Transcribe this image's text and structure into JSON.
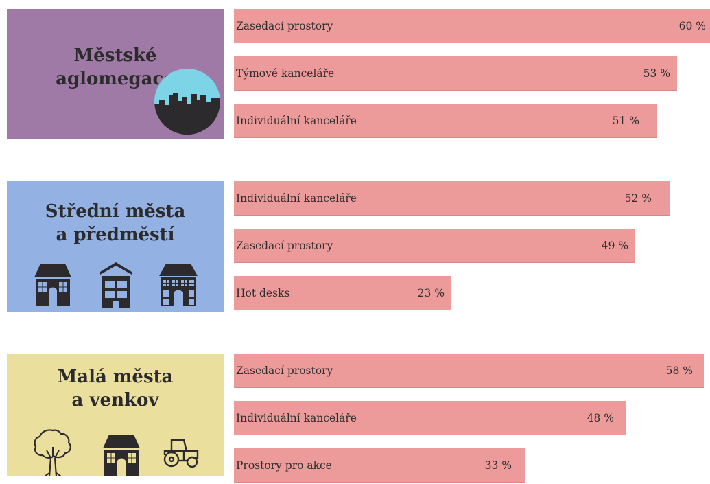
{
  "colors": {
    "bar": "#ec9a9a",
    "panel_metro": "#a07aa6",
    "panel_mid": "#94b1e3",
    "panel_small": "#eadf9c",
    "icon_dark": "#2d2a2e",
    "sky": "#7dd4e6"
  },
  "icons": {
    "metro": [
      "city-skyline-icon"
    ],
    "mid": [
      "house-icon",
      "apartment-block-icon",
      "townhouse-icon"
    ],
    "small": [
      "tree-icon",
      "house-icon",
      "tractor-icon"
    ]
  },
  "chart_data": {
    "type": "bar",
    "orientation": "horizontal",
    "unit": "%",
    "groups": [
      {
        "key": "metro",
        "title_lines": [
          "Městské",
          "aglomegace"
        ],
        "categories": [
          "Zasedací prostory",
          "Týmové kanceláře",
          "Individuální kanceláře"
        ],
        "values": [
          60,
          53,
          51
        ],
        "value_labels": [
          "60 %",
          "53 %",
          "51 %"
        ]
      },
      {
        "key": "mid",
        "title_lines": [
          "Střední města",
          "a předměstí"
        ],
        "categories": [
          "Individuální kanceláře",
          "Zasedací prostory",
          "Hot desks"
        ],
        "values": [
          52,
          49,
          23
        ],
        "value_labels": [
          "52 %",
          "49 %",
          "23 %"
        ]
      },
      {
        "key": "small",
        "title_lines": [
          "Malá města",
          "a venkov"
        ],
        "categories": [
          "Zasedací prostory",
          "Individuální kanceláře",
          "Prostory pro akce"
        ],
        "values": [
          58,
          48,
          33
        ],
        "value_labels": [
          "58 %",
          "48 %",
          "33 %"
        ]
      }
    ]
  }
}
